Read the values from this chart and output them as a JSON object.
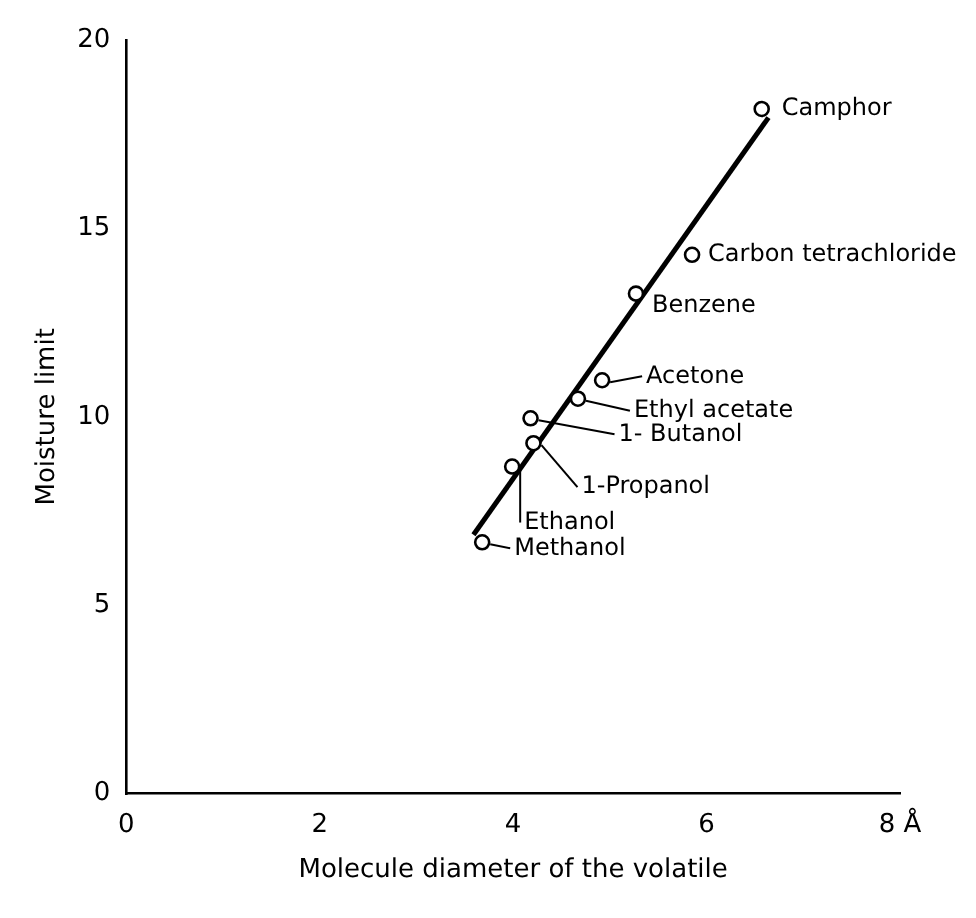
{
  "chart_data": {
    "type": "scatter",
    "xlabel": "Molecule diameter of the volatile",
    "ylabel": "Moisture limit",
    "x": [
      3.68,
      3.99,
      4.21,
      4.18,
      4.67,
      4.92,
      5.27,
      5.85,
      6.57
    ],
    "values": [
      6.67,
      8.68,
      9.3,
      9.96,
      10.48,
      10.97,
      13.27,
      14.3,
      18.17
    ],
    "color": "#000000",
    "marker": "circle",
    "series": [
      {
        "type": "line",
        "x": [
          3.59,
          6.64
        ],
        "values": [
          6.87,
          17.94
        ],
        "color": "#000000",
        "line_style": "solid",
        "marker": "none"
      }
    ],
    "annotations": [
      {
        "text": "Methanol",
        "x": 3.68,
        "y": 6.67
      },
      {
        "text": "Ethanol",
        "x": 3.99,
        "y": 8.68
      },
      {
        "text": "1-Propanol",
        "x": 4.21,
        "y": 9.3
      },
      {
        "text": "1- Butanol",
        "x": 4.18,
        "y": 9.96
      },
      {
        "text": "Ethyl acetate",
        "x": 4.67,
        "y": 10.48
      },
      {
        "text": "Acetone",
        "x": 4.92,
        "y": 10.97
      },
      {
        "text": "Benzene",
        "x": 5.27,
        "y": 13.27
      },
      {
        "text": "Carbon tetrachloride",
        "x": 5.85,
        "y": 14.3
      },
      {
        "text": "Camphor",
        "x": 6.57,
        "y": 18.17
      }
    ],
    "xlim": [
      0,
      8
    ],
    "xticks": [
      0,
      2,
      4,
      6,
      {
        "value": 8,
        "label": "8 Å"
      }
    ],
    "ylim": [
      0,
      20
    ],
    "yticks": [
      0,
      5,
      10,
      15,
      20
    ],
    "grid": false,
    "legend": false
  }
}
